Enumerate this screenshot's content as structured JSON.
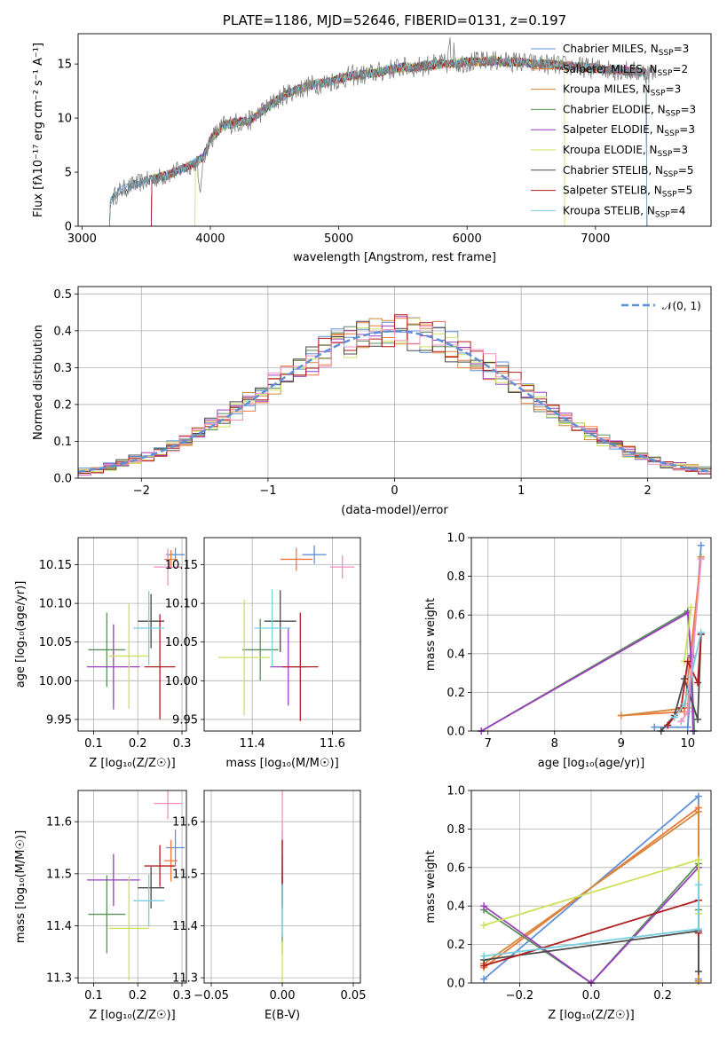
{
  "colors": {
    "series": [
      "#6090d8",
      "#f0783c",
      "#d2893a",
      "#5a8f5a",
      "#9b3fbf",
      "#cfe05a",
      "#4a4a4a",
      "#b01e1e",
      "#78cfe0",
      "#f08fc0"
    ],
    "spectrum": "#808080",
    "gaussian": "#6090d8"
  },
  "chart_data": [
    {
      "type": "line",
      "title": "PLATE=1186, MJD=52646, FIBERID=0131, z=0.197",
      "xlabel": "wavelength [Angstrom, rest frame]",
      "ylabel": "Flux [fλ10⁻¹⁷ erg cm⁻² s⁻¹ A⁻¹]",
      "xlim": [
        2970,
        7900
      ],
      "ylim": [
        0,
        17.8
      ],
      "xticks": [
        "3000",
        "4000",
        "5000",
        "6000",
        "7000"
      ],
      "yticks": [
        "0",
        "5",
        "10",
        "15"
      ],
      "legend_position": "right",
      "legend": [
        {
          "label": "Chabrier MILES, N",
          "sub": "SSP",
          "tail": "=3"
        },
        {
          "label": "Salpeter MILES, N",
          "sub": "SSP",
          "tail": "=2"
        },
        {
          "label": "Kroupa MILES, N",
          "sub": "SSP",
          "tail": "=3"
        },
        {
          "label": "Chabrier ELODIE, N",
          "sub": "SSP",
          "tail": "=3"
        },
        {
          "label": "Salpeter ELODIE, N",
          "sub": "SSP",
          "tail": "=3"
        },
        {
          "label": "Kroupa ELODIE, N",
          "sub": "SSP",
          "tail": "=3"
        },
        {
          "label": "Chabrier STELIB, N",
          "sub": "SSP",
          "tail": "=5"
        },
        {
          "label": "Salpeter STELIB, N",
          "sub": "SSP",
          "tail": "=5"
        },
        {
          "label": "Kroupa STELIB, N",
          "sub": "SSP",
          "tail": "=4"
        }
      ],
      "spectrum_knots": [
        [
          3215,
          0
        ],
        [
          3220,
          2.4
        ],
        [
          3300,
          3.3
        ],
        [
          3400,
          3.8
        ],
        [
          3500,
          4.2
        ],
        [
          3600,
          4.5
        ],
        [
          3700,
          4.9
        ],
        [
          3800,
          5.4
        ],
        [
          3900,
          6.0
        ],
        [
          3950,
          6.5
        ],
        [
          4000,
          8.0
        ],
        [
          4100,
          9.3
        ],
        [
          4200,
          9.6
        ],
        [
          4300,
          9.7
        ],
        [
          4400,
          10.6
        ],
        [
          4500,
          11.5
        ],
        [
          4600,
          12.3
        ],
        [
          4700,
          12.7
        ],
        [
          4800,
          13.1
        ],
        [
          4900,
          13.3
        ],
        [
          5000,
          13.6
        ],
        [
          5100,
          13.9
        ],
        [
          5200,
          14.0
        ],
        [
          5300,
          14.2
        ],
        [
          5400,
          14.5
        ],
        [
          5500,
          14.7
        ],
        [
          5600,
          14.7
        ],
        [
          5700,
          14.9
        ],
        [
          5800,
          15.0
        ],
        [
          5900,
          15.0
        ],
        [
          6000,
          15.2
        ],
        [
          6100,
          15.2
        ],
        [
          6200,
          15.3
        ],
        [
          6300,
          15.2
        ],
        [
          6400,
          15.2
        ],
        [
          6500,
          15.0
        ],
        [
          6600,
          15.0
        ],
        [
          6700,
          14.9
        ],
        [
          6800,
          14.8
        ],
        [
          6900,
          14.7
        ],
        [
          7000,
          14.6
        ],
        [
          7100,
          14.5
        ],
        [
          7200,
          14.4
        ],
        [
          7300,
          14.3
        ],
        [
          7400,
          14.2
        ],
        [
          7470,
          14.1
        ]
      ],
      "model_starts": [
        3215,
        3540,
        3540,
        3540,
        3540,
        3880,
        3215,
        3540,
        3215
      ],
      "model_ends": [
        7400,
        7400,
        7400,
        7400,
        7400,
        6760,
        7400,
        7400,
        7400
      ]
    },
    {
      "type": "line",
      "subtype": "step-histogram",
      "xlabel": "(data-model)/error",
      "ylabel": "Normed distribution",
      "xlim": [
        -2.5,
        2.5
      ],
      "ylim": [
        0,
        0.52
      ],
      "xticks": [
        "−2",
        "−1",
        "0",
        "1",
        "2"
      ],
      "yticks": [
        "0.0",
        "0.1",
        "0.2",
        "0.3",
        "0.4",
        "0.5"
      ],
      "bin_width": 0.1,
      "legend_label": "𝒩(0, 1)",
      "legend_position": "top-right",
      "series_note_colors": "same order as colors.series"
    },
    {
      "type": "scatter",
      "subtype": "errorbar",
      "xlabel": "Z [log₁₀(Z/Z☉)]",
      "ylabel": "age  [log₁₀(age/yr)]",
      "xlim": [
        0.065,
        0.31
      ],
      "ylim": [
        9.935,
        10.185
      ],
      "xticks": [
        "0.1",
        "0.2",
        "0.3"
      ],
      "yticks": [
        "9.95",
        "10.00",
        "10.05",
        "10.10",
        "10.15"
      ],
      "points": [
        {
          "x": 0.285,
          "y": 10.163,
          "xerr": 0.021,
          "yerr": 0.009
        },
        {
          "x": 0.275,
          "y": 10.157,
          "xerr": 0.015,
          "yerr": 0.012
        },
        {
          "x": 0.268,
          "y": 10.147,
          "xerr": 0.032,
          "yerr": 0.024
        },
        {
          "x": 0.13,
          "y": 10.04,
          "xerr": 0.042,
          "yerr": 0.048
        },
        {
          "x": 0.145,
          "y": 10.018,
          "xerr": 0.06,
          "yerr": 0.055
        },
        {
          "x": 0.18,
          "y": 10.032,
          "xerr": 0.045,
          "yerr": 0.068
        },
        {
          "x": 0.23,
          "y": 10.077,
          "xerr": 0.03,
          "yerr": 0.035
        },
        {
          "x": 0.25,
          "y": 10.018,
          "xerr": 0.035,
          "yerr": 0.068
        },
        {
          "x": 0.225,
          "y": 10.068,
          "xerr": 0.035,
          "yerr": 0.048
        }
      ]
    },
    {
      "type": "scatter",
      "subtype": "errorbar",
      "xlabel": "mass [log₁₀(M/M☉)]",
      "ylabel": "",
      "xlim": [
        11.28,
        11.67
      ],
      "ylim": [
        9.935,
        10.185
      ],
      "xticks": [
        "11.4",
        "11.6"
      ],
      "yticks": [
        "9.95",
        "10.00",
        "10.05",
        "10.10",
        "10.15"
      ],
      "points": [
        {
          "x": 11.555,
          "y": 10.163,
          "xerr": 0.03,
          "yerr": 0.012
        },
        {
          "x": 11.51,
          "y": 10.157,
          "xerr": 0.04,
          "yerr": 0.015
        },
        {
          "x": 11.625,
          "y": 10.147,
          "xerr": 0.03,
          "yerr": 0.015
        },
        {
          "x": 11.42,
          "y": 10.04,
          "xerr": 0.045,
          "yerr": 0.04
        },
        {
          "x": 11.49,
          "y": 10.018,
          "xerr": 0.045,
          "yerr": 0.05
        },
        {
          "x": 11.38,
          "y": 10.03,
          "xerr": 0.065,
          "yerr": 0.075
        },
        {
          "x": 11.47,
          "y": 10.077,
          "xerr": 0.04,
          "yerr": 0.04
        },
        {
          "x": 11.52,
          "y": 10.018,
          "xerr": 0.045,
          "yerr": 0.07
        },
        {
          "x": 11.45,
          "y": 10.068,
          "xerr": 0.045,
          "yerr": 0.05
        }
      ]
    },
    {
      "type": "line",
      "xlabel": "age  [log₁₀(age/yr)]",
      "ylabel": "mass weight",
      "xlim": [
        6.75,
        10.35
      ],
      "ylim": [
        0,
        1
      ],
      "xticks": [
        "7",
        "8",
        "9",
        "10"
      ],
      "yticks": [
        "0.0",
        "0.2",
        "0.4",
        "0.6",
        "0.8",
        "1.0"
      ],
      "series": [
        {
          "points": [
            [
              9.5,
              0.02
            ],
            [
              10.0,
              0.02
            ],
            [
              10.2,
              0.96
            ]
          ]
        },
        {
          "points": [
            [
              9.0,
              0.08
            ],
            [
              9.95,
              0.1
            ],
            [
              10.2,
              0.9
            ]
          ]
        },
        {
          "points": [
            [
              9.0,
              0.08
            ],
            [
              10.0,
              0.12
            ],
            [
              10.2,
              0.9
            ]
          ]
        },
        {
          "points": [
            [
              6.9,
              0.0
            ],
            [
              10.0,
              0.62
            ],
            [
              10.05,
              0.38
            ],
            [
              10.1,
              0.0
            ]
          ]
        },
        {
          "points": [
            [
              6.9,
              0.0
            ],
            [
              10.0,
              0.61
            ],
            [
              10.05,
              0.39
            ],
            [
              10.08,
              0.0
            ]
          ]
        },
        {
          "points": [
            [
              9.95,
              0.36
            ],
            [
              10.05,
              0.64
            ]
          ]
        },
        {
          "points": [
            [
              9.6,
              0.0
            ],
            [
              9.8,
              0.08
            ],
            [
              9.95,
              0.27
            ],
            [
              10.15,
              0.06
            ],
            [
              10.2,
              0.5
            ]
          ]
        },
        {
          "points": [
            [
              9.7,
              0.03
            ],
            [
              9.9,
              0.12
            ],
            [
              10.0,
              0.36
            ],
            [
              10.15,
              0.25
            ],
            [
              10.2,
              0.5
            ]
          ]
        },
        {
          "points": [
            [
              9.8,
              0.07
            ],
            [
              9.95,
              0.14
            ],
            [
              10.05,
              0.28
            ],
            [
              10.2,
              0.51
            ]
          ]
        },
        {
          "points": [
            [
              9.9,
              0.05
            ],
            [
              10.0,
              0.1
            ],
            [
              10.2,
              0.89
            ]
          ]
        }
      ]
    },
    {
      "type": "scatter",
      "subtype": "errorbar",
      "xlabel": "Z [log₁₀(Z/Z☉)]",
      "ylabel": "mass [log₁₀(M/M☉)]",
      "xlim": [
        0.065,
        0.31
      ],
      "ylim": [
        11.29,
        11.66
      ],
      "xticks": [
        "0.1",
        "0.2",
        "0.3"
      ],
      "yticks": [
        "11.3",
        "11.4",
        "11.5",
        "11.6"
      ],
      "points": [
        {
          "x": 0.285,
          "y": 11.55,
          "xerr": 0.021,
          "yerr": 0.035
        },
        {
          "x": 0.275,
          "y": 11.525,
          "xerr": 0.015,
          "yerr": 0.04
        },
        {
          "x": 0.268,
          "y": 11.635,
          "xerr": 0.032,
          "yerr": 0.03
        },
        {
          "x": 0.13,
          "y": 11.422,
          "xerr": 0.042,
          "yerr": 0.075
        },
        {
          "x": 0.145,
          "y": 11.488,
          "xerr": 0.06,
          "yerr": 0.05
        },
        {
          "x": 0.18,
          "y": 11.395,
          "xerr": 0.045,
          "yerr": 0.1
        },
        {
          "x": 0.23,
          "y": 11.473,
          "xerr": 0.03,
          "yerr": 0.04
        },
        {
          "x": 0.25,
          "y": 11.515,
          "xerr": 0.035,
          "yerr": 0.04
        },
        {
          "x": 0.225,
          "y": 11.448,
          "xerr": 0.035,
          "yerr": 0.05
        }
      ]
    },
    {
      "type": "scatter",
      "subtype": "errorbar",
      "xlabel": "E(B-V)",
      "ylabel": "",
      "xlim": [
        -0.055,
        0.055
      ],
      "ylim": [
        11.29,
        11.66
      ],
      "xticks": [
        "−0.05",
        "0.00",
        "0.05"
      ],
      "yticks": [
        "11.3",
        "11.4",
        "11.5",
        "11.6"
      ],
      "points": [
        {
          "x": 0.0,
          "y": 11.55,
          "xerr": 0.0,
          "yerr": 0.035
        },
        {
          "x": 0.0,
          "y": 11.525,
          "xerr": 0.0,
          "yerr": 0.04
        },
        {
          "x": 0.0,
          "y": 11.6,
          "xerr": 0.0,
          "yerr": 0.06
        },
        {
          "x": 0.0,
          "y": 11.42,
          "xerr": 0.0,
          "yerr": 0.075
        },
        {
          "x": 0.0,
          "y": 11.488,
          "xerr": 0.0,
          "yerr": 0.05
        },
        {
          "x": 0.0,
          "y": 11.33,
          "xerr": 0.0,
          "yerr": 0.04
        },
        {
          "x": 0.0,
          "y": 11.473,
          "xerr": 0.0,
          "yerr": 0.04
        },
        {
          "x": 0.0,
          "y": 11.52,
          "xerr": 0.0,
          "yerr": 0.045
        },
        {
          "x": 0.0,
          "y": 11.43,
          "xerr": 0.0,
          "yerr": 0.05
        }
      ]
    },
    {
      "type": "line",
      "xlabel": "Z [log₁₀(Z/Z☉)]",
      "ylabel": "mass weight",
      "xlim": [
        -0.335,
        0.335
      ],
      "ylim": [
        0,
        1
      ],
      "xticks": [
        "−0.2",
        "0.0",
        "0.2"
      ],
      "yticks": [
        "0.0",
        "0.2",
        "0.4",
        "0.6",
        "0.8",
        "1.0"
      ],
      "series": [
        {
          "points": [
            [
              -0.3,
              0.02
            ],
            [
              0.3,
              0.97
            ],
            [
              0.3,
              0.02
            ]
          ]
        },
        {
          "points": [
            [
              -0.3,
              0.08
            ],
            [
              0.3,
              0.91
            ],
            [
              0.3,
              0.01
            ]
          ]
        },
        {
          "points": [
            [
              -0.3,
              0.1
            ],
            [
              0.3,
              0.89
            ],
            [
              0.3,
              0.01
            ]
          ]
        },
        {
          "points": [
            [
              -0.3,
              0.38
            ],
            [
              0.0,
              0.0
            ],
            [
              0.3,
              0.62
            ],
            [
              0.3,
              0.38
            ]
          ]
        },
        {
          "points": [
            [
              -0.3,
              0.4
            ],
            [
              0.0,
              0.0
            ],
            [
              0.3,
              0.6
            ]
          ]
        },
        {
          "points": [
            [
              -0.3,
              0.3
            ],
            [
              0.3,
              0.64
            ],
            [
              0.3,
              0.36
            ]
          ]
        },
        {
          "points": [
            [
              -0.3,
              0.12
            ],
            [
              0.3,
              0.27
            ],
            [
              0.3,
              0.06
            ]
          ]
        },
        {
          "points": [
            [
              -0.3,
              0.09
            ],
            [
              0.3,
              0.43
            ],
            [
              0.3,
              0.26
            ]
          ]
        },
        {
          "points": [
            [
              -0.3,
              0.14
            ],
            [
              0.3,
              0.28
            ],
            [
              0.3,
              0.51
            ]
          ]
        }
      ]
    }
  ]
}
